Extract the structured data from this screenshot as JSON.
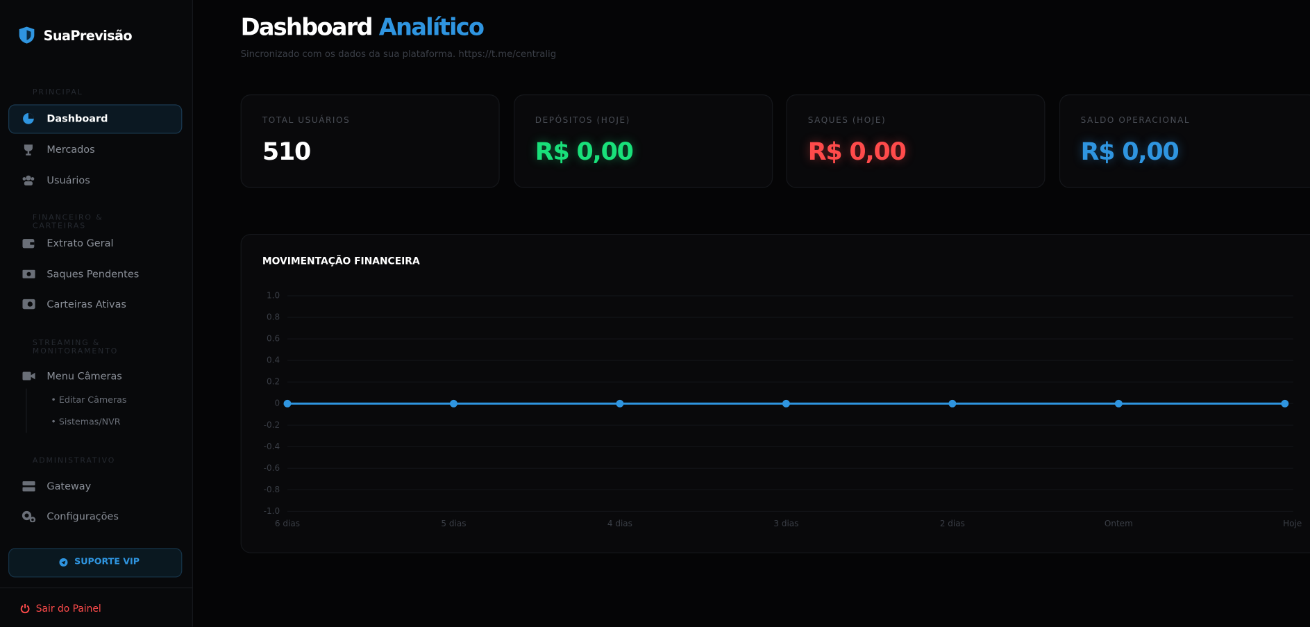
{
  "sidebar": {
    "brand": "SuaPrevisão",
    "sections": [
      {
        "title": "PRINCIPAL",
        "items": [
          "Dashboard",
          "Mercados",
          "Usuários"
        ]
      },
      {
        "title": "FINANCEIRO & CARTEIRAS",
        "items": [
          "Extrato Geral",
          "Saques Pendentes",
          "Carteiras Ativas"
        ]
      },
      {
        "title": "STREAMING & MONITORAMENTO",
        "items": [
          "Menu Câmeras"
        ],
        "subitems": [
          "Editar Câmeras",
          "Sistemas/NVR"
        ]
      },
      {
        "title": "ADMINISTRATIVO",
        "items": [
          "Gateway",
          "Configurações"
        ]
      }
    ],
    "support": "SUPORTE VIP",
    "logout": "Sair do Painel"
  },
  "header": {
    "title": "Dashboard",
    "title_accent": "Analítico",
    "subtitle": "Sincronizado com os dados da sua plataforma. https://t.me/centralig"
  },
  "stats": [
    {
      "label": "TOTAL USUÁRIOS",
      "value": "510",
      "color": "#ffffff"
    },
    {
      "label": "DEPÓSITOS (HOJE)",
      "value": "R$ 0,00",
      "color": "#19e07a"
    },
    {
      "label": "SAQUES (HOJE)",
      "value": "R$ 0,00",
      "color": "#ff4b4b"
    },
    {
      "label": "SALDO OPERACIONAL",
      "value": "R$ 0,00",
      "color": "#2f95e0"
    }
  ],
  "chart_data": {
    "type": "line",
    "title": "MOVIMENTAÇÃO FINANCEIRA",
    "categories": [
      "6 dias",
      "5 dias",
      "4 dias",
      "3 dias",
      "2 dias",
      "Ontem",
      "Hoje"
    ],
    "values": [
      0,
      0,
      0,
      0,
      0,
      0,
      0
    ],
    "color": "#2f95e0",
    "ylim": [
      -1,
      1
    ],
    "yticks": [
      {
        "value": -1,
        "label": "-1.0"
      },
      -0.8,
      -0.6,
      -0.4,
      -0.2,
      0,
      0.2,
      0.4,
      0.6,
      0.8,
      {
        "value": 1,
        "label": "1.0"
      }
    ],
    "grid": true
  }
}
